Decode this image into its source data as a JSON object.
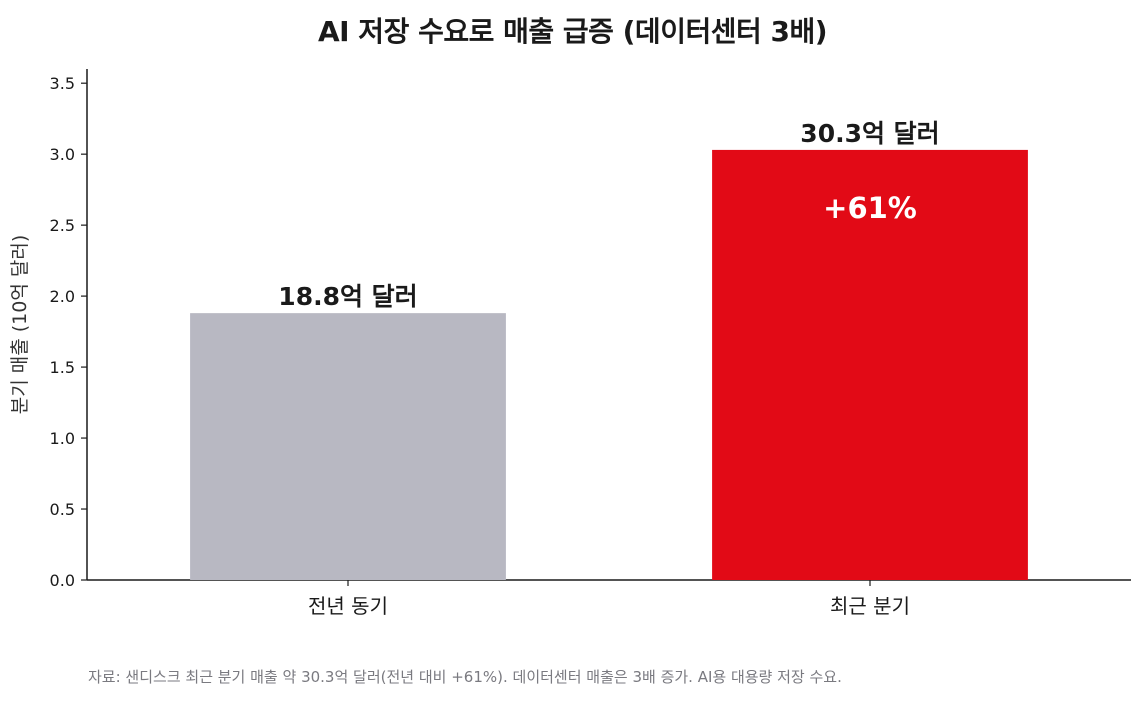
{
  "chart_data": {
    "type": "bar",
    "title": "AI 저장 수요로 매출 급증 (데이터센터 3배)",
    "ylabel": "분기 매출 (10억 달러)",
    "xlabel": "",
    "categories": [
      "전년 동기",
      "최근 분기"
    ],
    "values": [
      1.88,
      3.03
    ],
    "value_labels": [
      "18.8억 달러",
      "30.3억 달러"
    ],
    "annotation": "+61%",
    "ylim": [
      0,
      3.6
    ],
    "yticks": [
      0.0,
      0.5,
      1.0,
      1.5,
      2.0,
      2.5,
      3.0,
      3.5
    ],
    "colors": [
      "#b8b8c2",
      "#e20a16"
    ],
    "grid": false
  },
  "source_note": "자료: 샌디스크 최근 분기 매출 약 30.3억 달러(전년 대비 +61%). 데이터센터 매출은 3배 증가. AI용 대용량 저장 수요."
}
